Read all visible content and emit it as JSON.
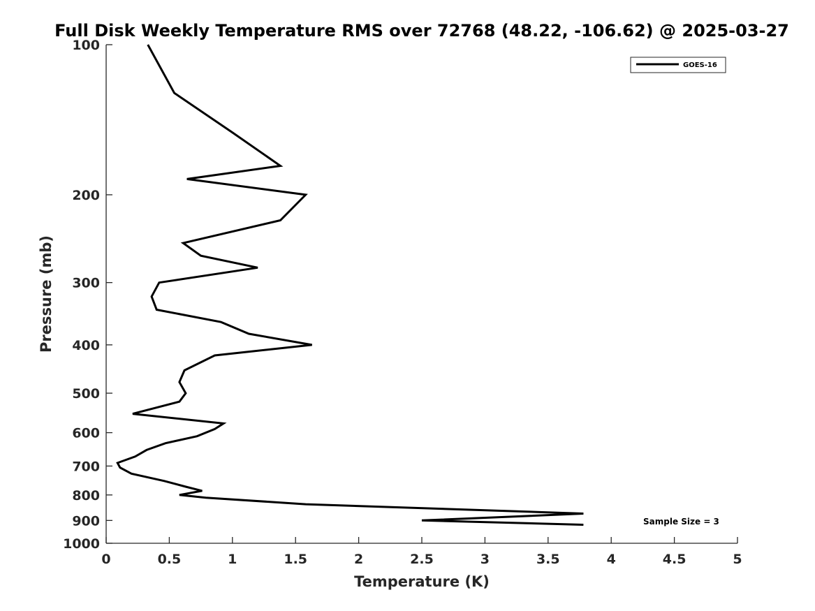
{
  "chart_data": {
    "type": "line",
    "title": "Full Disk Weekly Temperature RMS over 72768 (48.22, -106.62) @ 2025-03-27",
    "xlabel": "Temperature (K)",
    "ylabel": "Pressure (mb)",
    "xlim": [
      0,
      5
    ],
    "ylim": [
      100,
      1000
    ],
    "yscale": "log",
    "y_reversed": true,
    "x_ticks": [
      "0",
      "0.5",
      "1",
      "1.5",
      "2",
      "2.5",
      "3",
      "3.5",
      "4",
      "4.5",
      "5"
    ],
    "y_ticks": [
      "100",
      "200",
      "300",
      "400",
      "500",
      "600",
      "700",
      "800",
      "900",
      "1000"
    ],
    "grid": false,
    "legend_position": "top-right",
    "annotation": "Sample Size = 3",
    "series": [
      {
        "name": "GOES-16",
        "color": "#000000",
        "points": [
          [
            0.33,
            100
          ],
          [
            0.54,
            125
          ],
          [
            1.0,
            150
          ],
          [
            1.38,
            175
          ],
          [
            0.64,
            186
          ],
          [
            1.58,
            200
          ],
          [
            1.38,
            225
          ],
          [
            0.61,
            250
          ],
          [
            0.75,
            265
          ],
          [
            1.2,
            280
          ],
          [
            0.42,
            300
          ],
          [
            0.36,
            320
          ],
          [
            0.4,
            340
          ],
          [
            0.91,
            360
          ],
          [
            1.13,
            380
          ],
          [
            1.63,
            400
          ],
          [
            0.86,
            420
          ],
          [
            0.62,
            450
          ],
          [
            0.58,
            475
          ],
          [
            0.63,
            500
          ],
          [
            0.58,
            520
          ],
          [
            0.21,
            550
          ],
          [
            0.93,
            575
          ],
          [
            0.86,
            590
          ],
          [
            0.72,
            610
          ],
          [
            0.47,
            630
          ],
          [
            0.32,
            650
          ],
          [
            0.23,
            670
          ],
          [
            0.09,
            690
          ],
          [
            0.11,
            705
          ],
          [
            0.2,
            725
          ],
          [
            0.46,
            750
          ],
          [
            0.63,
            770
          ],
          [
            0.76,
            785
          ],
          [
            0.58,
            800
          ],
          [
            0.79,
            810
          ],
          [
            1.58,
            835
          ],
          [
            3.78,
            872
          ],
          [
            2.5,
            900
          ],
          [
            3.78,
            918
          ]
        ]
      }
    ]
  }
}
